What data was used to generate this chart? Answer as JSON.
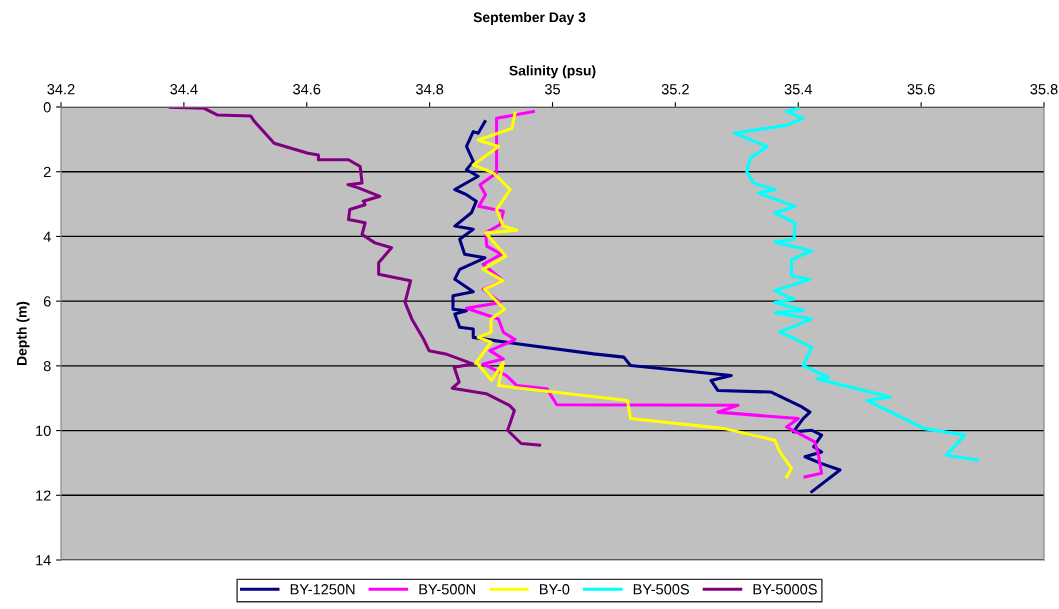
{
  "chart_data": {
    "type": "line",
    "title": "September Day 3",
    "xlabel": "Salinity (psu)",
    "ylabel": "Depth (m)",
    "xlim": [
      34.2,
      35.8
    ],
    "xticks": [
      34.2,
      34.4,
      34.6,
      34.8,
      35,
      35.2,
      35.4,
      35.6,
      35.8
    ],
    "ylim": [
      14,
      0
    ],
    "yticks": [
      0,
      2,
      4,
      6,
      8,
      10,
      12,
      14
    ],
    "grid": "y",
    "legend": "bottom",
    "marker": "none",
    "line_style": "solid",
    "series": [
      {
        "name": "BY-1250N",
        "color": "#000080",
        "x": [
          34.89,
          34.879,
          34.871,
          34.86,
          34.871,
          34.86,
          34.879,
          34.841,
          34.86,
          34.876,
          34.868,
          34.841,
          34.871,
          34.849,
          34.857,
          34.89,
          34.849,
          34.841,
          34.871,
          34.838,
          34.838,
          34.86,
          34.841,
          34.849,
          34.871,
          34.871,
          34.942,
          35.067,
          35.116,
          35.127,
          35.291,
          35.258,
          35.269,
          35.356,
          35.406,
          35.419,
          35.408,
          35.392,
          35.422,
          35.438,
          35.425,
          35.438,
          35.411,
          35.438,
          35.468,
          35.422
        ],
        "values": [
          0.45,
          0.81,
          0.76,
          1.22,
          1.68,
          1.94,
          2.14,
          2.55,
          2.71,
          2.91,
          3.27,
          3.68,
          3.78,
          4.09,
          4.55,
          4.66,
          5.02,
          5.32,
          5.71,
          5.83,
          6.25,
          6.3,
          6.4,
          6.81,
          6.86,
          7.12,
          7.32,
          7.63,
          7.73,
          7.99,
          8.3,
          8.45,
          8.76,
          8.81,
          9.27,
          9.43,
          9.63,
          10.04,
          9.99,
          10.14,
          10.5,
          10.66,
          10.81,
          11.02,
          11.22,
          11.89
        ]
      },
      {
        "name": "BY-500N",
        "color": "#ff00ff",
        "x": [
          34.969,
          34.909,
          34.909,
          34.882,
          34.891,
          34.88,
          34.92,
          34.915,
          34.891,
          34.893,
          34.917,
          34.887,
          34.92,
          34.887,
          34.915,
          34.86,
          34.912,
          34.92,
          34.939,
          34.898,
          34.92,
          34.887,
          34.925,
          34.942,
          34.991,
          35.007,
          35.302,
          35.269,
          35.4,
          35.381,
          35.427,
          35.433,
          35.438,
          35.411
        ],
        "values": [
          0.14,
          0.35,
          2.04,
          2.4,
          2.71,
          3.07,
          3.22,
          3.63,
          3.89,
          4.3,
          4.55,
          4.86,
          5.37,
          5.63,
          6.04,
          6.22,
          6.55,
          6.96,
          7.19,
          7.53,
          7.79,
          7.94,
          8.3,
          8.61,
          8.71,
          9.2,
          9.22,
          9.43,
          9.63,
          9.89,
          10.35,
          10.76,
          11.32,
          11.43
        ]
      },
      {
        "name": "BY-0",
        "color": "#ffff00",
        "x": [
          34.939,
          34.934,
          34.879,
          34.912,
          34.871,
          34.904,
          34.931,
          34.909,
          34.92,
          34.942,
          34.891,
          34.924,
          34.887,
          34.92,
          34.889,
          34.922,
          34.9,
          34.9,
          34.879,
          34.9,
          34.876,
          34.901,
          34.92,
          34.912,
          35.122,
          35.127,
          35.28,
          35.362,
          35.37,
          35.389,
          35.381
        ],
        "values": [
          0.19,
          0.66,
          1.02,
          1.22,
          1.79,
          2.04,
          2.55,
          3.17,
          3.68,
          3.81,
          3.89,
          4.61,
          5.02,
          5.37,
          5.63,
          6.25,
          6.55,
          6.96,
          7.12,
          7.27,
          7.89,
          8.45,
          7.89,
          8.61,
          9.07,
          9.63,
          9.94,
          10.3,
          10.66,
          11.17,
          11.43
        ]
      },
      {
        "name": "BY-500S",
        "color": "#00ffff",
        "x": [
          35.4,
          35.381,
          35.408,
          35.381,
          35.296,
          35.349,
          35.322,
          35.316,
          35.327,
          35.362,
          35.335,
          35.395,
          35.362,
          35.395,
          35.393,
          35.362,
          35.422,
          35.389,
          35.389,
          35.419,
          35.362,
          35.393,
          35.362,
          35.409,
          35.362,
          35.422,
          35.37,
          35.395,
          35.422,
          35.408,
          35.449,
          35.43,
          35.55,
          35.512,
          35.605,
          35.671,
          35.641,
          35.692
        ],
        "values": [
          0.04,
          0.14,
          0.35,
          0.56,
          0.81,
          1.22,
          1.58,
          1.99,
          2.35,
          2.55,
          2.66,
          3.07,
          3.27,
          3.58,
          4.09,
          4.17,
          4.45,
          4.71,
          5.22,
          5.32,
          5.68,
          5.94,
          6.04,
          6.29,
          6.35,
          6.55,
          6.96,
          7.17,
          7.43,
          7.99,
          8.35,
          8.4,
          8.96,
          9.07,
          9.94,
          10.14,
          10.76,
          10.91
        ]
      },
      {
        "name": "BY-5000S",
        "color": "#800080",
        "x": [
          34.378,
          34.433,
          34.455,
          34.509,
          34.515,
          34.547,
          34.602,
          34.619,
          34.619,
          34.668,
          34.687,
          34.69,
          34.667,
          34.684,
          34.719,
          34.692,
          34.695,
          34.67,
          34.668,
          34.695,
          34.69,
          34.711,
          34.738,
          34.717,
          34.717,
          34.769,
          34.76,
          34.771,
          34.79,
          34.799,
          34.826,
          34.87,
          34.84,
          34.848,
          34.837,
          34.892,
          34.93,
          34.938,
          34.927,
          34.949,
          34.979
        ],
        "values": [
          0.01,
          0.04,
          0.25,
          0.28,
          0.45,
          1.12,
          1.43,
          1.48,
          1.63,
          1.63,
          1.84,
          2.35,
          2.4,
          2.5,
          2.76,
          2.91,
          3.02,
          3.17,
          3.48,
          3.58,
          3.94,
          4.2,
          4.35,
          4.81,
          5.17,
          5.37,
          6.04,
          6.55,
          7.17,
          7.53,
          7.63,
          7.94,
          8.04,
          8.5,
          8.69,
          8.86,
          9.22,
          9.38,
          9.99,
          10.4,
          10.45
        ]
      }
    ]
  }
}
